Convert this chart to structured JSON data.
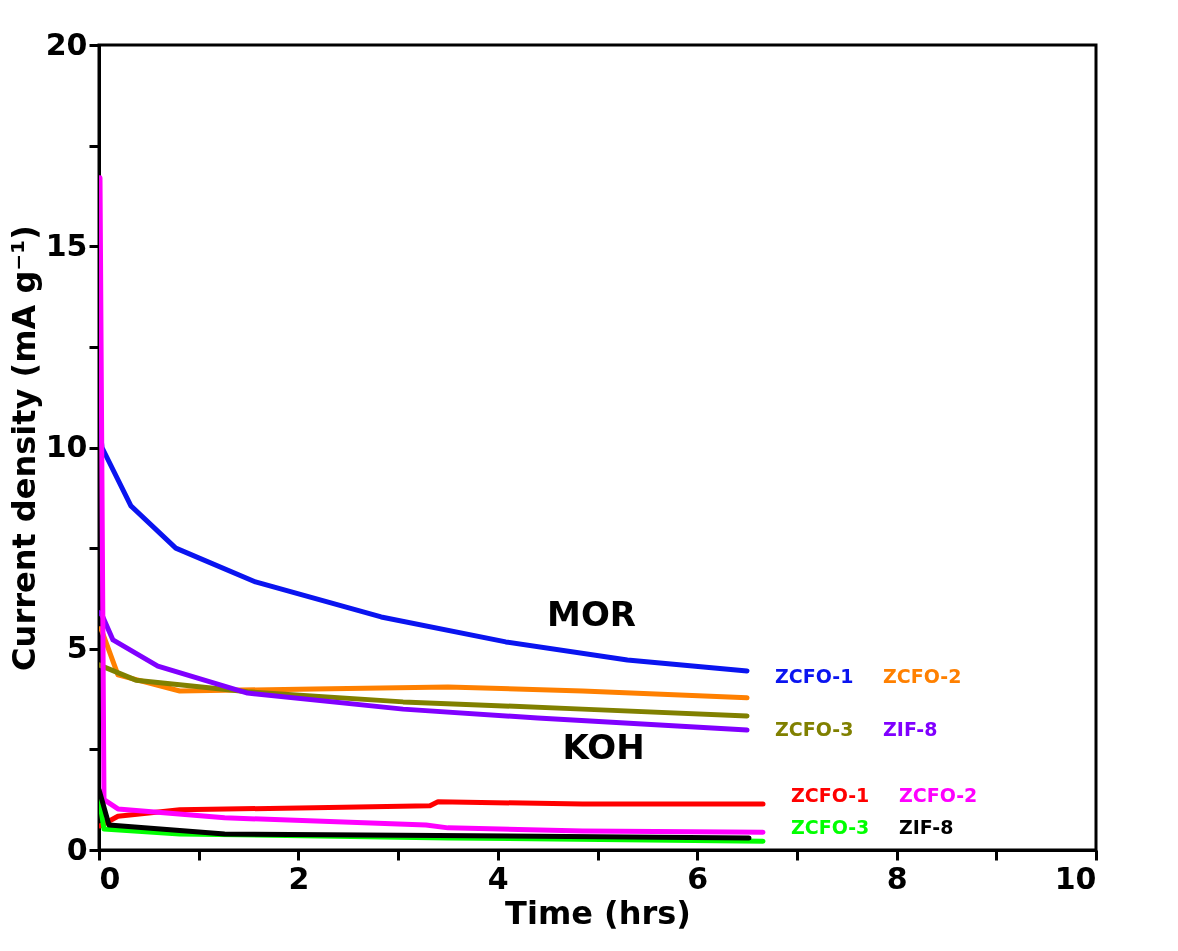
{
  "chart_data": {
    "type": "line",
    "xlabel": "Time (hrs)",
    "ylabel": "Current density (mA g⁻¹)",
    "xlim": [
      0,
      10
    ],
    "ylim": [
      0,
      20
    ],
    "xticks": [
      0,
      {
        "value": 1,
        "label": null
      },
      2,
      {
        "value": 3,
        "label": null
      },
      4,
      {
        "value": 5,
        "label": null
      },
      6,
      {
        "value": 7,
        "label": null
      },
      8,
      {
        "value": 9,
        "label": null
      },
      10
    ],
    "yticks": [
      0,
      {
        "value": 2.5,
        "label": null
      },
      5,
      {
        "value": 7.5,
        "label": null
      },
      10,
      {
        "value": 12.5,
        "label": null
      },
      15,
      {
        "value": 17.5,
        "label": null
      },
      20
    ],
    "grid": false,
    "marker": "none",
    "line_style": "solid",
    "annotations": [
      "MOR",
      "KOH"
    ],
    "series": [
      {
        "name": "ZCFO-1",
        "color": "#0a14f0",
        "x": [
          0,
          0.01,
          0.03,
          0.32,
          0.77,
          1.57,
          2.83,
          4.08,
          5.3,
          6.5
        ],
        "values": [
          11.5,
          10.5,
          10.0,
          8.55,
          7.5,
          6.66,
          5.79,
          5.17,
          4.72,
          4.45
        ]
      },
      {
        "name": "ZCFO-2",
        "color": "#ff8000",
        "x": [
          0,
          0.02,
          0.19,
          0.81,
          2.16,
          3.5,
          4.85,
          6.5
        ],
        "values": [
          5.5,
          5.5,
          4.35,
          3.95,
          4.0,
          4.05,
          3.95,
          3.78
        ]
      },
      {
        "name": "ZCFO-3",
        "color": "#808000",
        "x": [
          0,
          0.03,
          0.37,
          1.49,
          3.05,
          4.85,
          6.5
        ],
        "values": [
          4.6,
          4.57,
          4.22,
          3.93,
          3.68,
          3.5,
          3.33
        ]
      },
      {
        "name": "ZIF-8",
        "color": "#8000ff",
        "x": [
          0,
          0.03,
          0.14,
          0.59,
          1.49,
          3.05,
          4.4,
          6.5
        ],
        "values": [
          5.9,
          5.84,
          5.22,
          4.57,
          3.9,
          3.5,
          3.28,
          2.98
        ]
      },
      {
        "name": "ZCFO-1",
        "color": "#ff0000",
        "x": [
          0.01,
          0.03,
          0.19,
          0.81,
          2.16,
          3.32,
          3.4,
          4.85,
          6.66
        ],
        "values": [
          0.6,
          0.62,
          0.84,
          1.0,
          1.05,
          1.1,
          1.2,
          1.14,
          1.14
        ]
      },
      {
        "name": "ZCFO-2",
        "color": "#ff00ff",
        "x": [
          0,
          0.01,
          0.05,
          0.19,
          1.26,
          3.28,
          3.5,
          4.85,
          6.66
        ],
        "values": [
          16.7,
          16.7,
          1.25,
          1.02,
          0.8,
          0.62,
          0.55,
          0.47,
          0.44
        ]
      },
      {
        "name": "ZCFO-3",
        "color": "#00ff00",
        "x": [
          0,
          0.05,
          0.81,
          3.5,
          6.66
        ],
        "values": [
          1.3,
          0.52,
          0.4,
          0.3,
          0.22
        ]
      },
      {
        "name": "ZIF-8",
        "color": "#000000",
        "x": [
          0,
          0.1,
          1.26,
          6.52
        ],
        "values": [
          1.5,
          0.62,
          0.4,
          0.3
        ]
      }
    ]
  }
}
